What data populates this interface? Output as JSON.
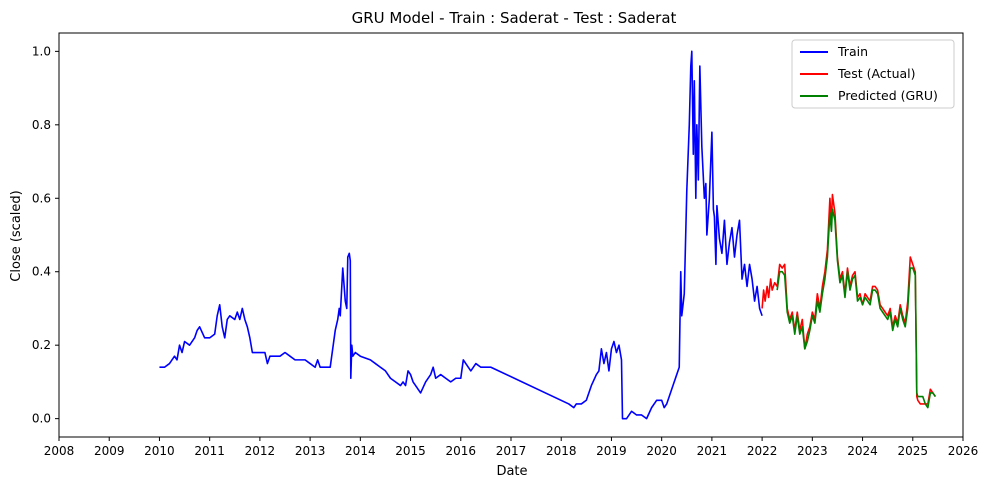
{
  "chart_data": {
    "type": "line",
    "title": "GRU Model - Train : Saderat - Test : Saderat",
    "xlabel": "Date",
    "ylabel": "Close (scaled)",
    "xlim": [
      2008.0,
      2026.0
    ],
    "ylim": [
      -0.05,
      1.05
    ],
    "x_ticks": [
      "2008",
      "2009",
      "2010",
      "2011",
      "2012",
      "2013",
      "2014",
      "2015",
      "2016",
      "2017",
      "2018",
      "2019",
      "2020",
      "2021",
      "2022",
      "2023",
      "2024",
      "2025",
      "2026"
    ],
    "y_ticks": [
      "0.0",
      "0.2",
      "0.4",
      "0.6",
      "0.8",
      "1.0"
    ],
    "grid": false,
    "legend_position": "top-right",
    "series": [
      {
        "name": "Train",
        "color": "#0000ff",
        "points": [
          [
            2010.0,
            0.14
          ],
          [
            2010.1,
            0.14
          ],
          [
            2010.2,
            0.15
          ],
          [
            2010.3,
            0.17
          ],
          [
            2010.35,
            0.16
          ],
          [
            2010.4,
            0.2
          ],
          [
            2010.45,
            0.18
          ],
          [
            2010.5,
            0.21
          ],
          [
            2010.6,
            0.2
          ],
          [
            2010.7,
            0.22
          ],
          [
            2010.75,
            0.24
          ],
          [
            2010.8,
            0.25
          ],
          [
            2010.9,
            0.22
          ],
          [
            2011.0,
            0.22
          ],
          [
            2011.1,
            0.23
          ],
          [
            2011.15,
            0.28
          ],
          [
            2011.2,
            0.31
          ],
          [
            2011.25,
            0.25
          ],
          [
            2011.3,
            0.22
          ],
          [
            2011.35,
            0.27
          ],
          [
            2011.4,
            0.28
          ],
          [
            2011.5,
            0.27
          ],
          [
            2011.55,
            0.29
          ],
          [
            2011.6,
            0.27
          ],
          [
            2011.65,
            0.3
          ],
          [
            2011.7,
            0.27
          ],
          [
            2011.75,
            0.25
          ],
          [
            2011.8,
            0.22
          ],
          [
            2011.85,
            0.18
          ],
          [
            2012.0,
            0.18
          ],
          [
            2012.1,
            0.18
          ],
          [
            2012.15,
            0.15
          ],
          [
            2012.2,
            0.17
          ],
          [
            2012.4,
            0.17
          ],
          [
            2012.5,
            0.18
          ],
          [
            2012.6,
            0.17
          ],
          [
            2012.7,
            0.16
          ],
          [
            2012.9,
            0.16
          ],
          [
            2013.0,
            0.15
          ],
          [
            2013.1,
            0.14
          ],
          [
            2013.15,
            0.16
          ],
          [
            2013.2,
            0.14
          ],
          [
            2013.4,
            0.14
          ],
          [
            2013.45,
            0.19
          ],
          [
            2013.5,
            0.24
          ],
          [
            2013.55,
            0.27
          ],
          [
            2013.58,
            0.3
          ],
          [
            2013.6,
            0.28
          ],
          [
            2013.65,
            0.41
          ],
          [
            2013.7,
            0.32
          ],
          [
            2013.73,
            0.3
          ],
          [
            2013.75,
            0.44
          ],
          [
            2013.78,
            0.45
          ],
          [
            2013.8,
            0.43
          ],
          [
            2013.81,
            0.11
          ],
          [
            2013.83,
            0.2
          ],
          [
            2013.85,
            0.17
          ],
          [
            2013.9,
            0.18
          ],
          [
            2014.0,
            0.17
          ],
          [
            2014.2,
            0.16
          ],
          [
            2014.3,
            0.15
          ],
          [
            2014.4,
            0.14
          ],
          [
            2014.5,
            0.13
          ],
          [
            2014.6,
            0.11
          ],
          [
            2014.7,
            0.1
          ],
          [
            2014.8,
            0.09
          ],
          [
            2014.85,
            0.1
          ],
          [
            2014.9,
            0.09
          ],
          [
            2014.95,
            0.13
          ],
          [
            2015.0,
            0.12
          ],
          [
            2015.05,
            0.1
          ],
          [
            2015.1,
            0.09
          ],
          [
            2015.2,
            0.07
          ],
          [
            2015.3,
            0.1
          ],
          [
            2015.4,
            0.12
          ],
          [
            2015.45,
            0.14
          ],
          [
            2015.5,
            0.11
          ],
          [
            2015.6,
            0.12
          ],
          [
            2015.7,
            0.11
          ],
          [
            2015.8,
            0.1
          ],
          [
            2015.9,
            0.11
          ],
          [
            2016.0,
            0.11
          ],
          [
            2016.05,
            0.16
          ],
          [
            2016.1,
            0.15
          ],
          [
            2016.2,
            0.13
          ],
          [
            2016.3,
            0.15
          ],
          [
            2016.4,
            0.14
          ],
          [
            2016.5,
            0.14
          ],
          [
            2016.6,
            0.14
          ],
          [
            2018.15,
            0.04
          ],
          [
            2018.25,
            0.03
          ],
          [
            2018.3,
            0.04
          ],
          [
            2018.4,
            0.04
          ],
          [
            2018.5,
            0.05
          ],
          [
            2018.6,
            0.09
          ],
          [
            2018.7,
            0.12
          ],
          [
            2018.75,
            0.13
          ],
          [
            2018.8,
            0.19
          ],
          [
            2018.85,
            0.15
          ],
          [
            2018.9,
            0.18
          ],
          [
            2018.95,
            0.13
          ],
          [
            2019.0,
            0.19
          ],
          [
            2019.05,
            0.21
          ],
          [
            2019.1,
            0.18
          ],
          [
            2019.15,
            0.2
          ],
          [
            2019.2,
            0.16
          ],
          [
            2019.22,
            0.0
          ],
          [
            2019.3,
            0.0
          ],
          [
            2019.4,
            0.02
          ],
          [
            2019.5,
            0.01
          ],
          [
            2019.6,
            0.01
          ],
          [
            2019.7,
            0.0
          ],
          [
            2019.8,
            0.03
          ],
          [
            2019.9,
            0.05
          ],
          [
            2020.0,
            0.05
          ],
          [
            2020.05,
            0.03
          ],
          [
            2020.1,
            0.04
          ],
          [
            2020.15,
            0.06
          ],
          [
            2020.2,
            0.08
          ],
          [
            2020.25,
            0.1
          ],
          [
            2020.3,
            0.12
          ],
          [
            2020.35,
            0.14
          ],
          [
            2020.38,
            0.4
          ],
          [
            2020.4,
            0.28
          ],
          [
            2020.45,
            0.34
          ],
          [
            2020.5,
            0.62
          ],
          [
            2020.55,
            0.8
          ],
          [
            2020.58,
            0.96
          ],
          [
            2020.6,
            1.0
          ],
          [
            2020.63,
            0.72
          ],
          [
            2020.65,
            0.92
          ],
          [
            2020.68,
            0.6
          ],
          [
            2020.7,
            0.8
          ],
          [
            2020.73,
            0.65
          ],
          [
            2020.76,
            0.96
          ],
          [
            2020.8,
            0.74
          ],
          [
            2020.85,
            0.6
          ],
          [
            2020.88,
            0.64
          ],
          [
            2020.9,
            0.5
          ],
          [
            2020.95,
            0.6
          ],
          [
            2021.0,
            0.78
          ],
          [
            2021.03,
            0.57
          ],
          [
            2021.05,
            0.55
          ],
          [
            2021.08,
            0.42
          ],
          [
            2021.1,
            0.58
          ],
          [
            2021.15,
            0.49
          ],
          [
            2021.2,
            0.45
          ],
          [
            2021.25,
            0.54
          ],
          [
            2021.3,
            0.42
          ],
          [
            2021.35,
            0.48
          ],
          [
            2021.4,
            0.52
          ],
          [
            2021.45,
            0.44
          ],
          [
            2021.5,
            0.5
          ],
          [
            2021.55,
            0.54
          ],
          [
            2021.6,
            0.38
          ],
          [
            2021.65,
            0.42
          ],
          [
            2021.7,
            0.36
          ],
          [
            2021.75,
            0.42
          ],
          [
            2021.8,
            0.38
          ],
          [
            2021.85,
            0.32
          ],
          [
            2021.9,
            0.36
          ],
          [
            2021.95,
            0.3
          ],
          [
            2022.0,
            0.28
          ]
        ]
      },
      {
        "name": "Test (Actual)",
        "color": "#ff0000",
        "points": [
          [
            2022.0,
            0.3
          ],
          [
            2022.03,
            0.35
          ],
          [
            2022.06,
            0.32
          ],
          [
            2022.1,
            0.36
          ],
          [
            2022.13,
            0.33
          ],
          [
            2022.17,
            0.38
          ],
          [
            2022.2,
            0.35
          ],
          [
            2022.25,
            0.37
          ],
          [
            2022.3,
            0.36
          ],
          [
            2022.35,
            0.42
          ],
          [
            2022.4,
            0.41
          ],
          [
            2022.45,
            0.42
          ],
          [
            2022.5,
            0.3
          ],
          [
            2022.55,
            0.27
          ],
          [
            2022.6,
            0.29
          ],
          [
            2022.65,
            0.24
          ],
          [
            2022.7,
            0.29
          ],
          [
            2022.75,
            0.24
          ],
          [
            2022.8,
            0.27
          ],
          [
            2022.85,
            0.19
          ],
          [
            2022.9,
            0.23
          ],
          [
            2022.95,
            0.25
          ],
          [
            2023.0,
            0.29
          ],
          [
            2023.05,
            0.27
          ],
          [
            2023.1,
            0.34
          ],
          [
            2023.15,
            0.3
          ],
          [
            2023.2,
            0.36
          ],
          [
            2023.25,
            0.4
          ],
          [
            2023.3,
            0.46
          ],
          [
            2023.35,
            0.6
          ],
          [
            2023.38,
            0.53
          ],
          [
            2023.4,
            0.61
          ],
          [
            2023.45,
            0.56
          ],
          [
            2023.5,
            0.44
          ],
          [
            2023.55,
            0.38
          ],
          [
            2023.6,
            0.4
          ],
          [
            2023.65,
            0.34
          ],
          [
            2023.7,
            0.41
          ],
          [
            2023.75,
            0.36
          ],
          [
            2023.8,
            0.39
          ],
          [
            2023.85,
            0.4
          ],
          [
            2023.9,
            0.33
          ],
          [
            2023.95,
            0.34
          ],
          [
            2024.0,
            0.31
          ],
          [
            2024.05,
            0.34
          ],
          [
            2024.1,
            0.33
          ],
          [
            2024.15,
            0.32
          ],
          [
            2024.2,
            0.36
          ],
          [
            2024.25,
            0.36
          ],
          [
            2024.3,
            0.35
          ],
          [
            2024.35,
            0.31
          ],
          [
            2024.4,
            0.3
          ],
          [
            2024.45,
            0.29
          ],
          [
            2024.5,
            0.28
          ],
          [
            2024.55,
            0.3
          ],
          [
            2024.6,
            0.25
          ],
          [
            2024.65,
            0.28
          ],
          [
            2024.7,
            0.26
          ],
          [
            2024.75,
            0.31
          ],
          [
            2024.8,
            0.28
          ],
          [
            2024.85,
            0.26
          ],
          [
            2024.9,
            0.32
          ],
          [
            2024.95,
            0.44
          ],
          [
            2025.0,
            0.42
          ],
          [
            2025.05,
            0.4
          ],
          [
            2025.08,
            0.06
          ],
          [
            2025.1,
            0.05
          ],
          [
            2025.15,
            0.04
          ],
          [
            2025.2,
            0.04
          ],
          [
            2025.25,
            0.04
          ],
          [
            2025.3,
            0.04
          ],
          [
            2025.35,
            0.08
          ],
          [
            2025.4,
            0.07
          ],
          [
            2025.45,
            0.06
          ]
        ]
      },
      {
        "name": "Predicted (GRU)",
        "color": "#008000",
        "points": [
          [
            2022.3,
            0.35
          ],
          [
            2022.35,
            0.4
          ],
          [
            2022.4,
            0.4
          ],
          [
            2022.45,
            0.39
          ],
          [
            2022.5,
            0.29
          ],
          [
            2022.55,
            0.26
          ],
          [
            2022.6,
            0.28
          ],
          [
            2022.65,
            0.23
          ],
          [
            2022.7,
            0.28
          ],
          [
            2022.75,
            0.23
          ],
          [
            2022.8,
            0.25
          ],
          [
            2022.85,
            0.19
          ],
          [
            2022.9,
            0.21
          ],
          [
            2022.95,
            0.24
          ],
          [
            2023.0,
            0.28
          ],
          [
            2023.05,
            0.26
          ],
          [
            2023.1,
            0.32
          ],
          [
            2023.15,
            0.29
          ],
          [
            2023.2,
            0.34
          ],
          [
            2023.25,
            0.38
          ],
          [
            2023.3,
            0.44
          ],
          [
            2023.35,
            0.56
          ],
          [
            2023.38,
            0.51
          ],
          [
            2023.4,
            0.57
          ],
          [
            2023.45,
            0.54
          ],
          [
            2023.5,
            0.43
          ],
          [
            2023.55,
            0.37
          ],
          [
            2023.6,
            0.39
          ],
          [
            2023.65,
            0.33
          ],
          [
            2023.7,
            0.4
          ],
          [
            2023.75,
            0.35
          ],
          [
            2023.8,
            0.38
          ],
          [
            2023.85,
            0.39
          ],
          [
            2023.9,
            0.32
          ],
          [
            2023.95,
            0.33
          ],
          [
            2024.0,
            0.31
          ],
          [
            2024.05,
            0.33
          ],
          [
            2024.1,
            0.32
          ],
          [
            2024.15,
            0.31
          ],
          [
            2024.2,
            0.35
          ],
          [
            2024.25,
            0.35
          ],
          [
            2024.3,
            0.34
          ],
          [
            2024.35,
            0.3
          ],
          [
            2024.4,
            0.29
          ],
          [
            2024.45,
            0.28
          ],
          [
            2024.5,
            0.27
          ],
          [
            2024.55,
            0.29
          ],
          [
            2024.6,
            0.24
          ],
          [
            2024.65,
            0.27
          ],
          [
            2024.7,
            0.25
          ],
          [
            2024.75,
            0.3
          ],
          [
            2024.8,
            0.27
          ],
          [
            2024.85,
            0.25
          ],
          [
            2024.9,
            0.3
          ],
          [
            2024.95,
            0.41
          ],
          [
            2025.0,
            0.41
          ],
          [
            2025.05,
            0.39
          ],
          [
            2025.08,
            0.07
          ],
          [
            2025.1,
            0.06
          ],
          [
            2025.15,
            0.06
          ],
          [
            2025.2,
            0.06
          ],
          [
            2025.25,
            0.04
          ],
          [
            2025.3,
            0.03
          ],
          [
            2025.35,
            0.07
          ],
          [
            2025.4,
            0.07
          ],
          [
            2025.45,
            0.06
          ]
        ]
      }
    ]
  }
}
